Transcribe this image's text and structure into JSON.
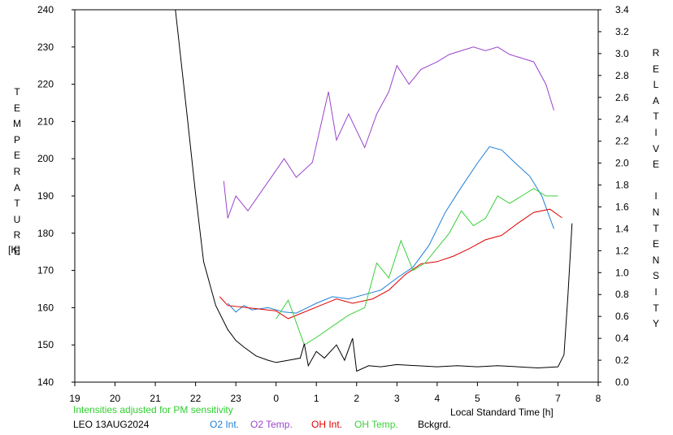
{
  "chart_data": {
    "type": "line",
    "y_left": {
      "title": "TEMPERATURE",
      "unit": "[K]",
      "min": 140,
      "max": 240,
      "ticks": [
        140,
        150,
        160,
        170,
        180,
        190,
        200,
        210,
        220,
        230,
        240
      ]
    },
    "y_right": {
      "title": "RELATIVE INTENSITY",
      "min": 0.0,
      "max": 3.4,
      "ticks": [
        "0.0",
        "0.2",
        "0.4",
        "0.6",
        "0.8",
        "1.0",
        "1.2",
        "1.4",
        "1.6",
        "1.8",
        "2.0",
        "2.2",
        "2.4",
        "2.6",
        "2.8",
        "3.0",
        "3.2",
        "3.4"
      ]
    },
    "x": {
      "label": "Local Standard Time [h]",
      "ticks": [
        "19",
        "20",
        "21",
        "22",
        "23",
        "0",
        "1",
        "2",
        "3",
        "4",
        "5",
        "6",
        "7",
        "8"
      ]
    },
    "note": "Intensities adjusted for PM sensitivity",
    "station": "LEO 13AUG2024",
    "legend": [
      "O2 Int.",
      "O2 Temp.",
      "OH Int.",
      "OH Temp.",
      "Bckgrd."
    ],
    "colors": {
      "o2_int": "#1f7fd6",
      "o2_temp": "#9a44cc",
      "oh_int": "#e00000",
      "oh_temp": "#3ccf3c",
      "bckgrd": "#000000",
      "note": "#2fcf2f"
    },
    "series": [
      {
        "name": "O2 Int.",
        "axis": "right",
        "color": "#1f7fd6",
        "points": [
          [
            -1.2,
            0.72
          ],
          [
            -1.0,
            0.64
          ],
          [
            -0.8,
            0.7
          ],
          [
            -0.6,
            0.66
          ],
          [
            -0.2,
            0.68
          ],
          [
            0.2,
            0.64
          ],
          [
            0.5,
            0.63
          ],
          [
            1.0,
            0.72
          ],
          [
            1.4,
            0.78
          ],
          [
            1.8,
            0.76
          ],
          [
            2.2,
            0.8
          ],
          [
            2.6,
            0.84
          ],
          [
            3.0,
            0.95
          ],
          [
            3.4,
            1.05
          ],
          [
            3.8,
            1.25
          ],
          [
            4.2,
            1.55
          ],
          [
            4.6,
            1.78
          ],
          [
            5.0,
            2.0
          ],
          [
            5.3,
            2.15
          ],
          [
            5.6,
            2.12
          ],
          [
            6.0,
            1.98
          ],
          [
            6.3,
            1.88
          ],
          [
            6.6,
            1.7
          ],
          [
            6.9,
            1.4
          ]
        ]
      },
      {
        "name": "O2 Temp.",
        "axis": "left",
        "color": "#9a44cc",
        "points": [
          [
            -1.3,
            194
          ],
          [
            -1.2,
            184
          ],
          [
            -1.0,
            190
          ],
          [
            -0.7,
            186
          ],
          [
            0.2,
            200
          ],
          [
            0.5,
            195
          ],
          [
            0.9,
            199
          ],
          [
            1.3,
            218
          ],
          [
            1.5,
            205
          ],
          [
            1.8,
            212
          ],
          [
            2.2,
            203
          ],
          [
            2.5,
            212
          ],
          [
            2.8,
            218
          ],
          [
            3.0,
            225
          ],
          [
            3.3,
            220
          ],
          [
            3.6,
            224
          ],
          [
            4.0,
            226
          ],
          [
            4.3,
            228
          ],
          [
            4.6,
            229
          ],
          [
            4.9,
            230
          ],
          [
            5.2,
            229
          ],
          [
            5.5,
            230
          ],
          [
            5.8,
            228
          ],
          [
            6.1,
            227
          ],
          [
            6.4,
            226
          ],
          [
            6.7,
            220
          ],
          [
            6.9,
            213
          ]
        ]
      },
      {
        "name": "OH Int.",
        "axis": "right",
        "color": "#e00000",
        "points": [
          [
            -1.4,
            0.78
          ],
          [
            -1.2,
            0.7
          ],
          [
            0.0,
            0.65
          ],
          [
            0.3,
            0.58
          ],
          [
            1.1,
            0.7
          ],
          [
            1.5,
            0.76
          ],
          [
            1.9,
            0.72
          ],
          [
            2.4,
            0.76
          ],
          [
            2.8,
            0.84
          ],
          [
            3.2,
            0.98
          ],
          [
            3.6,
            1.08
          ],
          [
            4.0,
            1.1
          ],
          [
            4.4,
            1.15
          ],
          [
            4.8,
            1.22
          ],
          [
            5.2,
            1.3
          ],
          [
            5.6,
            1.34
          ],
          [
            6.0,
            1.45
          ],
          [
            6.4,
            1.55
          ],
          [
            6.8,
            1.58
          ],
          [
            7.1,
            1.5
          ]
        ]
      },
      {
        "name": "OH Temp.",
        "axis": "left",
        "color": "#3ccf3c",
        "points": [
          [
            0.0,
            157
          ],
          [
            0.3,
            162
          ],
          [
            0.7,
            150
          ],
          [
            1.0,
            152
          ],
          [
            1.4,
            155
          ],
          [
            1.8,
            158
          ],
          [
            2.2,
            160
          ],
          [
            2.5,
            172
          ],
          [
            2.8,
            168
          ],
          [
            3.1,
            178
          ],
          [
            3.4,
            170
          ],
          [
            3.7,
            172
          ],
          [
            4.0,
            176
          ],
          [
            4.3,
            180
          ],
          [
            4.6,
            186
          ],
          [
            4.9,
            182
          ],
          [
            5.2,
            184
          ],
          [
            5.5,
            190
          ],
          [
            5.8,
            188
          ],
          [
            6.1,
            190
          ],
          [
            6.4,
            192
          ],
          [
            6.7,
            190
          ],
          [
            7.0,
            190
          ]
        ]
      },
      {
        "name": "Bckgrd.",
        "axis": "right",
        "color": "#000000",
        "points": [
          [
            -2.5,
            3.45
          ],
          [
            -2.2,
            2.4
          ],
          [
            -2.0,
            1.72
          ],
          [
            -1.8,
            1.1
          ],
          [
            -1.5,
            0.7
          ],
          [
            -1.2,
            0.48
          ],
          [
            -1.0,
            0.38
          ],
          [
            -0.8,
            0.32
          ],
          [
            -0.5,
            0.24
          ],
          [
            -0.2,
            0.2
          ],
          [
            0.0,
            0.18
          ],
          [
            0.3,
            0.2
          ],
          [
            0.6,
            0.22
          ],
          [
            0.7,
            0.35
          ],
          [
            0.8,
            0.15
          ],
          [
            1.0,
            0.28
          ],
          [
            1.2,
            0.22
          ],
          [
            1.5,
            0.34
          ],
          [
            1.7,
            0.2
          ],
          [
            1.9,
            0.4
          ],
          [
            2.0,
            0.1
          ],
          [
            2.3,
            0.15
          ],
          [
            2.6,
            0.14
          ],
          [
            3.0,
            0.16
          ],
          [
            3.5,
            0.15
          ],
          [
            4.0,
            0.14
          ],
          [
            4.5,
            0.15
          ],
          [
            5.0,
            0.14
          ],
          [
            5.5,
            0.15
          ],
          [
            6.0,
            0.14
          ],
          [
            6.5,
            0.13
          ],
          [
            7.0,
            0.14
          ],
          [
            7.15,
            0.25
          ],
          [
            7.25,
            0.8
          ],
          [
            7.35,
            1.45
          ]
        ]
      }
    ]
  }
}
